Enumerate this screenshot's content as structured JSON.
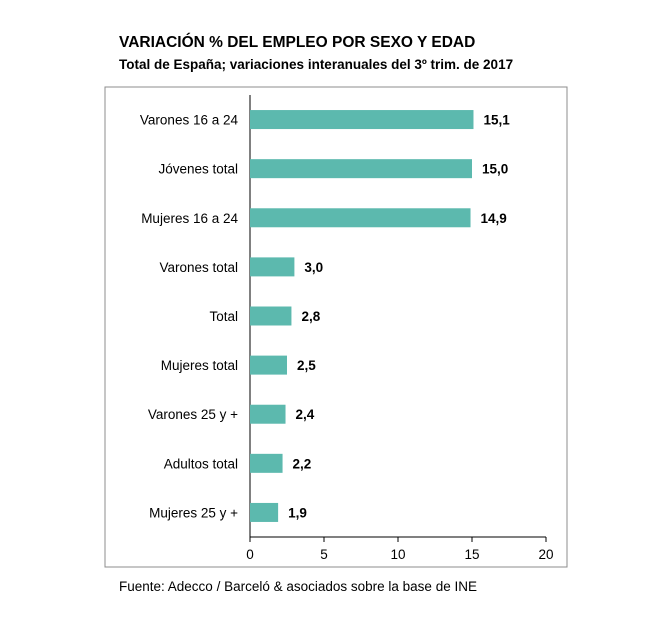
{
  "chart_data": {
    "type": "bar",
    "orientation": "horizontal",
    "title": "VARIACIÓN % DEL EMPLEO POR SEXO Y EDAD",
    "subtitle": "Total de España; variaciones interanuales del 3º trim. de 2017",
    "categories": [
      "Varones 16 a 24",
      "Jóvenes total",
      "Mujeres 16 a 24",
      "Varones total",
      "Total",
      "Mujeres total",
      "Varones 25 y +",
      "Adultos total",
      "Mujeres 25 y +"
    ],
    "values": [
      15.1,
      15.0,
      14.9,
      3.0,
      2.8,
      2.5,
      2.4,
      2.2,
      1.9
    ],
    "value_labels": [
      "15,1",
      "15,0",
      "14,9",
      "3,0",
      "2,8",
      "2,5",
      "2,4",
      "2,2",
      "1,9"
    ],
    "xlim": [
      0,
      20
    ],
    "xticks": [
      "0",
      "5",
      "10",
      "15",
      "20"
    ],
    "xlabel": "",
    "ylabel": "",
    "grid": false,
    "bar_color": "#5cb9ae",
    "source": "Fuente: Adecco / Barceló & asociados sobre la base de INE"
  }
}
